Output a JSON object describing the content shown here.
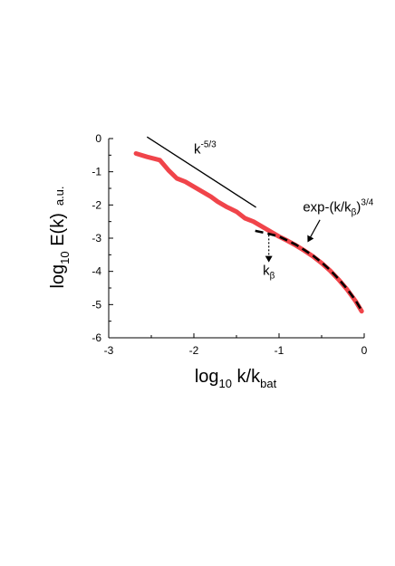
{
  "chart_data": {
    "type": "line",
    "xlabel": {
      "main": "log",
      "sub": "10",
      "rest": " k/k",
      "sub2": "bat"
    },
    "ylabel": {
      "main": "log",
      "sub": "10",
      "rest": " E(k)",
      "unit": "a.u."
    },
    "xlim": [
      -3,
      0
    ],
    "ylim": [
      -6,
      0
    ],
    "xticks": [
      -3,
      -2,
      -1,
      0
    ],
    "yticks": [
      0,
      -1,
      -2,
      -3,
      -4,
      -5,
      -6
    ],
    "series": [
      {
        "id": "spectrum",
        "color": "#f0444a",
        "style": "solid-thick",
        "x": [
          -2.68,
          -2.55,
          -2.4,
          -2.3,
          -2.2,
          -2.1,
          -2.0,
          -1.9,
          -1.8,
          -1.72,
          -1.62,
          -1.5,
          -1.4,
          -1.3,
          -1.2,
          -1.1,
          -1.0,
          -0.9,
          -0.8,
          -0.7,
          -0.6,
          -0.5,
          -0.4,
          -0.3,
          -0.2,
          -0.1,
          -0.03
        ],
        "y": [
          -0.45,
          -0.55,
          -0.65,
          -0.95,
          -1.2,
          -1.3,
          -1.45,
          -1.6,
          -1.75,
          -1.9,
          -2.05,
          -2.2,
          -2.4,
          -2.5,
          -2.65,
          -2.8,
          -2.95,
          -3.08,
          -3.22,
          -3.38,
          -3.55,
          -3.75,
          -3.98,
          -4.25,
          -4.55,
          -4.9,
          -5.2
        ]
      },
      {
        "id": "exp-fit",
        "color": "#000000",
        "style": "dashed",
        "x": [
          -1.28,
          -1.15,
          -1.0,
          -0.9,
          -0.8,
          -0.7,
          -0.6,
          -0.5,
          -0.4,
          -0.3,
          -0.2,
          -0.1,
          -0.03
        ],
        "y": [
          -2.78,
          -2.85,
          -2.95,
          -3.07,
          -3.2,
          -3.36,
          -3.53,
          -3.73,
          -3.96,
          -4.23,
          -4.53,
          -4.88,
          -5.18
        ]
      },
      {
        "id": "power-law",
        "color": "#000000",
        "style": "solid-thin",
        "x": [
          -2.55,
          -1.27
        ],
        "y": [
          0.05,
          -2.07
        ]
      }
    ],
    "annotations": {
      "power_law": {
        "text": "k",
        "sup": "-5/3",
        "x": -2.0,
        "y": -0.45
      },
      "exp_fit": {
        "text": "exp-(k/k",
        "sub": "β",
        "close": ")",
        "sup": "3/4",
        "x": -0.72,
        "y": -2.2
      },
      "k_beta": {
        "text": "k",
        "sub": "β",
        "x": -1.12,
        "y": -4.1
      },
      "k_beta_arrow": {
        "x": -1.12,
        "y_from": -2.9,
        "y_to": -3.7
      },
      "exp_arrow": {
        "x_from": -0.52,
        "y_from": -2.45,
        "x_to": -0.66,
        "y_to": -3.1
      }
    }
  }
}
